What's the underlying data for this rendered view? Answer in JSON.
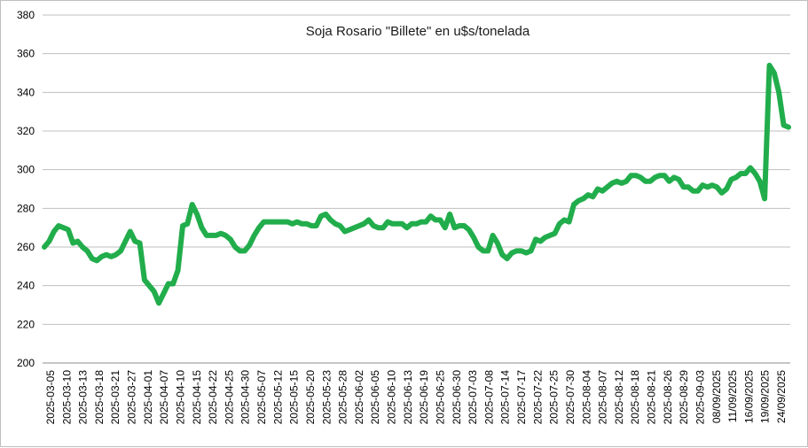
{
  "chart_data": {
    "type": "line",
    "title": "Soja Rosario \"Billete\" en u$s/tonelada",
    "xlabel": "",
    "ylabel": "",
    "ylim": [
      200,
      380
    ],
    "yticks": [
      200,
      220,
      240,
      260,
      280,
      300,
      320,
      340,
      360,
      380
    ],
    "grid": true,
    "legend": "none",
    "line_color": "#21ad4b",
    "x_tick_labels": [
      "2025-03-05",
      "2025-03-10",
      "2025-03-13",
      "2025-03-18",
      "2025-03-21",
      "2025-03-27",
      "2025-04-01",
      "2025-04-07",
      "2025-04-10",
      "2025-04-15",
      "2025-04-22",
      "2025-04-25",
      "2025-04-30",
      "2025-05-07",
      "2025-05-12",
      "2025-05-15",
      "2025-05-20",
      "2025-05-23",
      "2025-05-28",
      "2025-06-02",
      "2025-06-05",
      "2025-06-10",
      "2025-06-13",
      "2025-06-19",
      "2025-06-25",
      "2025-06-30",
      "2025-07-03",
      "2025-07-08",
      "2025-07-14",
      "2025-07-17",
      "2025-07-22",
      "2025-07-25",
      "2025-07-30",
      "2025-08-04",
      "2025-08-07",
      "2025-08-12",
      "2025-08-18",
      "2025-08-21",
      "2025-08-26",
      "2025-08-29",
      "2025-09-03",
      "08/09/2025",
      "11/09/2025",
      "16/09/2025",
      "19/09/2025",
      "24/09/2025"
    ],
    "series": [
      {
        "values": [
          260,
          263,
          268,
          271,
          270,
          269,
          262,
          263,
          260,
          258,
          254,
          253,
          255,
          256,
          255,
          256,
          258,
          263,
          268,
          263,
          262,
          243,
          240,
          237,
          231,
          236,
          241,
          241,
          248,
          271,
          272,
          282,
          277,
          270,
          266,
          266,
          266,
          267,
          266,
          264,
          260,
          258,
          258,
          261,
          266,
          270,
          273,
          273,
          273,
          273,
          273,
          273,
          272,
          273,
          272,
          272,
          271,
          271,
          276,
          277,
          274,
          272,
          271,
          268,
          269,
          270,
          271,
          272,
          274,
          271,
          270,
          270,
          273,
          272,
          272,
          272,
          270,
          272,
          272,
          273,
          273,
          276,
          274,
          274,
          270,
          277,
          270,
          271,
          271,
          269,
          265,
          260,
          258,
          258,
          266,
          262,
          256,
          254,
          257,
          258,
          258,
          257,
          258,
          264,
          263,
          265,
          266,
          267,
          272,
          274,
          273,
          282,
          284,
          285,
          287,
          286,
          290,
          289,
          291,
          293,
          294,
          293,
          294,
          297,
          297,
          296,
          294,
          294,
          296,
          297,
          297,
          294,
          296,
          295,
          291,
          291,
          289,
          289,
          292,
          291,
          292,
          291,
          288,
          290,
          295,
          296,
          298,
          298,
          301,
          298,
          294,
          285,
          354,
          350,
          340,
          323,
          322
        ]
      }
    ]
  }
}
